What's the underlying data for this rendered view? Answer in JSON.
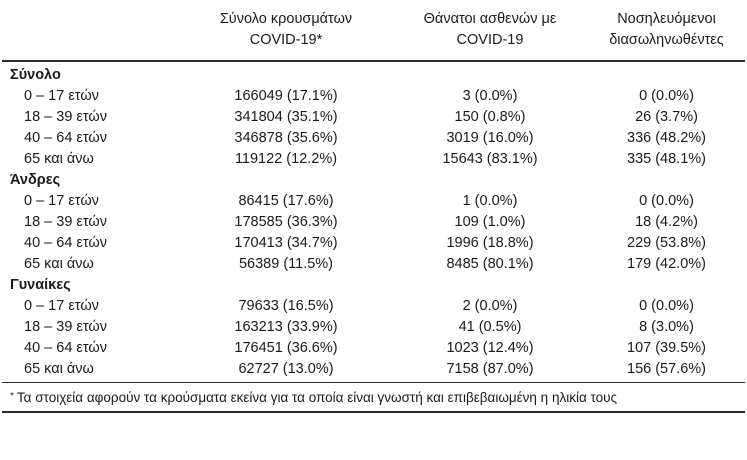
{
  "table": {
    "headers": [
      {
        "line1": "Σύνολο κρουσμάτων",
        "line2": "COVID-19*"
      },
      {
        "line1": "Θάνατοι ασθενών με",
        "line2": "COVID-19"
      },
      {
        "line1": "Νοσηλευόμενοι",
        "line2": "διασωληνωθέντες"
      }
    ],
    "sections": [
      {
        "title": "Σύνολο",
        "rows": [
          {
            "label": "0 – 17 ετών",
            "cases": "166049 (17.1%)",
            "deaths": "3 (0.0%)",
            "intubated": "0 (0.0%)"
          },
          {
            "label": "18 – 39 ετών",
            "cases": "341804 (35.1%)",
            "deaths": "150 (0.8%)",
            "intubated": "26 (3.7%)"
          },
          {
            "label": "40 – 64 ετών",
            "cases": "346878 (35.6%)",
            "deaths": "3019 (16.0%)",
            "intubated": "336 (48.2%)"
          },
          {
            "label": "65 και άνω",
            "cases": "119122 (12.2%)",
            "deaths": "15643 (83.1%)",
            "intubated": "335 (48.1%)"
          }
        ]
      },
      {
        "title": "Άνδρες",
        "rows": [
          {
            "label": "0 – 17 ετών",
            "cases": "86415 (17.6%)",
            "deaths": "1 (0.0%)",
            "intubated": "0 (0.0%)"
          },
          {
            "label": "18 – 39 ετών",
            "cases": "178585 (36.3%)",
            "deaths": "109 (1.0%)",
            "intubated": "18 (4.2%)"
          },
          {
            "label": "40 – 64 ετών",
            "cases": "170413 (34.7%)",
            "deaths": "1996 (18.8%)",
            "intubated": "229 (53.8%)"
          },
          {
            "label": "65 και άνω",
            "cases": "56389 (11.5%)",
            "deaths": "8485 (80.1%)",
            "intubated": "179 (42.0%)"
          }
        ]
      },
      {
        "title": "Γυναίκες",
        "rows": [
          {
            "label": "0 – 17 ετών",
            "cases": "79633 (16.5%)",
            "deaths": "2 (0.0%)",
            "intubated": "0 (0.0%)"
          },
          {
            "label": "18 – 39 ετών",
            "cases": "163213 (33.9%)",
            "deaths": "41 (0.5%)",
            "intubated": "8 (3.0%)"
          },
          {
            "label": "40 – 64 ετών",
            "cases": "176451 (36.6%)",
            "deaths": "1023 (12.4%)",
            "intubated": "107 (39.5%)"
          },
          {
            "label": "65 και άνω",
            "cases": "62727 (13.0%)",
            "deaths": "7158 (87.0%)",
            "intubated": "156 (57.6%)"
          }
        ]
      }
    ],
    "footnote_marker": "*",
    "footnote_text": "Τα στοιχεία αφορούν τα κρούσματα εκείνα για τα οποία είναι γνωστή και επιβεβαιωμένη η ηλικία τους"
  }
}
